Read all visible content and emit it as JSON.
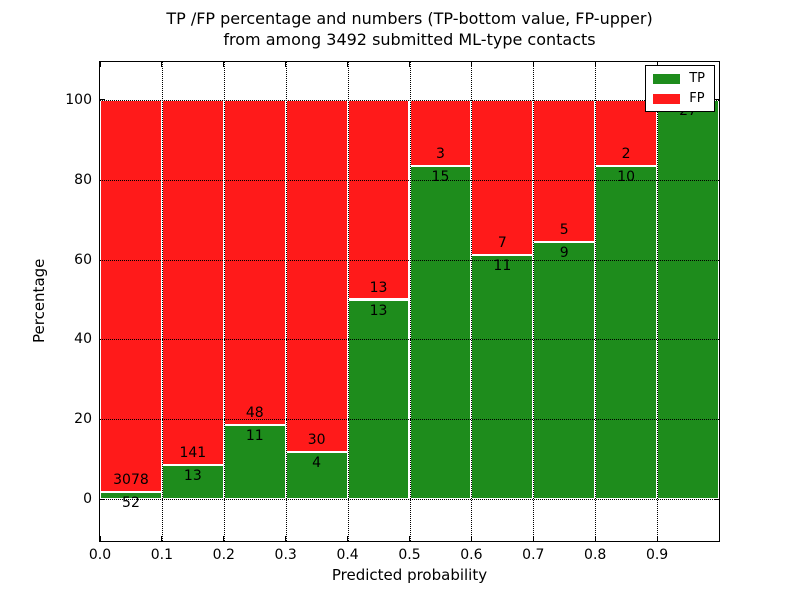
{
  "chart_data": {
    "type": "bar",
    "stacked": true,
    "title_line1": "TP /FP percentage and numbers (TP-bottom value, FP-upper)",
    "title_line2": "from among 3492 submitted ML-type contacts",
    "total_contacts": 3492,
    "xlabel": "Predicted probability",
    "ylabel": "Percentage",
    "xlim": [
      0.0,
      1.0
    ],
    "ylim": [
      -10.5,
      109.5
    ],
    "xticks": [
      "0.0",
      "0.1",
      "0.2",
      "0.3",
      "0.4",
      "0.5",
      "0.6",
      "0.7",
      "0.8",
      "0.9"
    ],
    "yticks": [
      0,
      20,
      40,
      60,
      80,
      100
    ],
    "grid": true,
    "grid_style": "dotted",
    "colors": {
      "tp": "#1e8c1c",
      "fp": "#ff1a1a",
      "bar_edge": "#ffffff",
      "axes": "#000000",
      "background": "#ffffff"
    },
    "legend": {
      "position": "upper-right",
      "entries": [
        {
          "label": "TP",
          "color": "#1e8c1c"
        },
        {
          "label": "FP",
          "color": "#ff1a1a"
        }
      ]
    },
    "bins": [
      {
        "x0": "0.0",
        "x1": "0.1",
        "tp_count": 52,
        "fp_count": 3078,
        "tp_pct": 1.66
      },
      {
        "x0": "0.1",
        "x1": "0.2",
        "tp_count": 13,
        "fp_count": 141,
        "tp_pct": 8.44
      },
      {
        "x0": "0.2",
        "x1": "0.3",
        "tp_count": 11,
        "fp_count": 48,
        "tp_pct": 18.64
      },
      {
        "x0": "0.3",
        "x1": "0.4",
        "tp_count": 4,
        "fp_count": 30,
        "tp_pct": 11.76
      },
      {
        "x0": "0.4",
        "x1": "0.5",
        "tp_count": 13,
        "fp_count": 13,
        "tp_pct": 50.0
      },
      {
        "x0": "0.5",
        "x1": "0.6",
        "tp_count": 15,
        "fp_count": 3,
        "tp_pct": 83.33
      },
      {
        "x0": "0.6",
        "x1": "0.7",
        "tp_count": 11,
        "fp_count": 7,
        "tp_pct": 61.11
      },
      {
        "x0": "0.7",
        "x1": "0.8",
        "tp_count": 9,
        "fp_count": 5,
        "tp_pct": 64.29
      },
      {
        "x0": "0.8",
        "x1": "0.9",
        "tp_count": 10,
        "fp_count": 2,
        "tp_pct": 83.33
      },
      {
        "x0": "0.9",
        "x1": "1.0",
        "tp_count": 27,
        "fp_count": null,
        "tp_pct": 100.0
      }
    ]
  }
}
